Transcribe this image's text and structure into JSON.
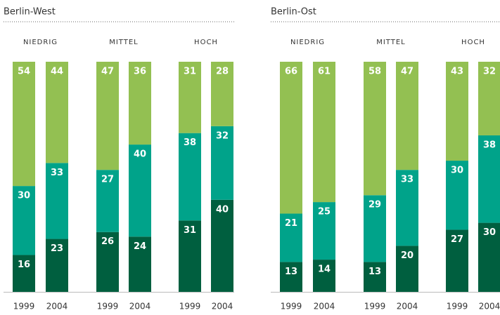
{
  "chart_data": [
    {
      "type": "bar",
      "stacked": true,
      "title": "Berlin-West",
      "groups": [
        "NIEDRIG",
        "MITTEL",
        "HOCH"
      ],
      "categories": [
        "1999",
        "2004",
        "1999",
        "2004",
        "1999",
        "2004"
      ],
      "ylim": [
        0,
        100
      ],
      "series": [
        {
          "color": "#005f3f",
          "values": [
            16,
            23,
            26,
            24,
            31,
            40
          ]
        },
        {
          "color": "#00a38a",
          "values": [
            30,
            33,
            27,
            40,
            38,
            32
          ]
        },
        {
          "color": "#93c052",
          "values": [
            54,
            44,
            47,
            36,
            31,
            28
          ]
        }
      ]
    },
    {
      "type": "bar",
      "stacked": true,
      "title": "Berlin-Ost",
      "groups": [
        "NIEDRIG",
        "MITTEL",
        "HOCH"
      ],
      "categories": [
        "1999",
        "2004",
        "1999",
        "2004",
        "1999",
        "2004"
      ],
      "ylim": [
        0,
        100
      ],
      "series": [
        {
          "color": "#005f3f",
          "values": [
            13,
            14,
            13,
            20,
            27,
            30
          ]
        },
        {
          "color": "#00a38a",
          "values": [
            21,
            25,
            29,
            33,
            30,
            38
          ]
        },
        {
          "color": "#93c052",
          "values": [
            66,
            61,
            58,
            47,
            43,
            32
          ]
        }
      ]
    }
  ]
}
